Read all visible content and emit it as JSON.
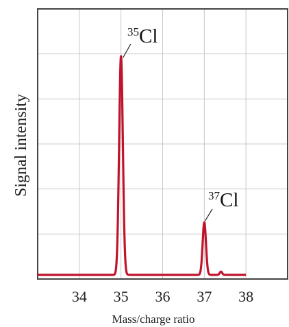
{
  "chart_data": {
    "type": "line",
    "title": "",
    "xlabel": "Mass/charge ratio",
    "ylabel": "Signal intensity",
    "xlim": [
      33.0,
      39.0
    ],
    "ylim": [
      0,
      100
    ],
    "x_ticks": [
      34,
      35,
      36,
      37,
      38
    ],
    "x_tick_labels": [
      "34",
      "35",
      "36",
      "37",
      "38"
    ],
    "grid": true,
    "series": [
      {
        "color": "#c0132c",
        "peaks": [
          {
            "x": 35.0,
            "y": 100
          },
          {
            "x": 37.0,
            "y": 24
          },
          {
            "x": 37.4,
            "y": 1.5
          }
        ],
        "x_start": 33.0,
        "x_end": 38.0
      }
    ],
    "annotations": [
      {
        "isotope_mass": "35",
        "symbol": "Cl",
        "x": 35.0,
        "y": 100
      },
      {
        "isotope_mass": "37",
        "symbol": "Cl",
        "x": 37.0,
        "y": 24
      }
    ]
  }
}
